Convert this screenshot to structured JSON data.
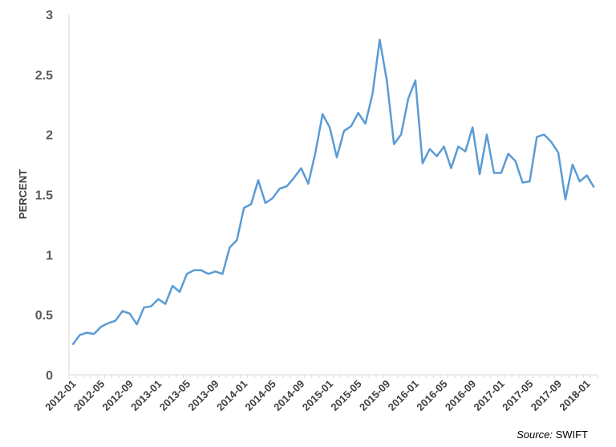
{
  "chart_data": {
    "type": "line",
    "ylabel": "PERCENT",
    "xlabel": "",
    "ylim": [
      0,
      3
    ],
    "yticks": [
      "0",
      "0.5",
      "1",
      "1.5",
      "2",
      "2.5",
      "3"
    ],
    "xtick_labels": [
      "2012-01",
      "2012-05",
      "2012-09",
      "2013-01",
      "2013-05",
      "2013-09",
      "2014-01",
      "2014-05",
      "2014-09",
      "2015-01",
      "2015-05",
      "2015-09",
      "2016-01",
      "2016-05",
      "2016-09",
      "2017-01",
      "2017-05",
      "2017-09",
      "2018-01"
    ],
    "grid": false,
    "line_color": "#5b9bd5",
    "x_start": "2012-01",
    "x_end": "2018-02",
    "series": [
      {
        "values": [
          0.25,
          0.33,
          0.35,
          0.34,
          0.4,
          0.43,
          0.45,
          0.53,
          0.51,
          0.42,
          0.56,
          0.57,
          0.63,
          0.59,
          0.74,
          0.69,
          0.84,
          0.87,
          0.87,
          0.84,
          0.86,
          0.84,
          1.06,
          1.12,
          1.39,
          1.42,
          1.62,
          1.43,
          1.47,
          1.55,
          1.57,
          1.64,
          1.72,
          1.59,
          1.85,
          2.17,
          2.06,
          1.81,
          2.03,
          2.07,
          2.18,
          2.09,
          2.34,
          2.79,
          2.45,
          1.92,
          2.0,
          2.3,
          2.45,
          1.76,
          1.88,
          1.82,
          1.9,
          1.72,
          1.9,
          1.86,
          2.06,
          1.67,
          2.0,
          1.68,
          1.68,
          1.84,
          1.78,
          1.6,
          1.61,
          1.98,
          2.0,
          1.94,
          1.85,
          1.46,
          1.75,
          1.61,
          1.66,
          1.56
        ]
      }
    ]
  },
  "source": {
    "prefix": "Source:",
    "name": " SWIFT"
  }
}
